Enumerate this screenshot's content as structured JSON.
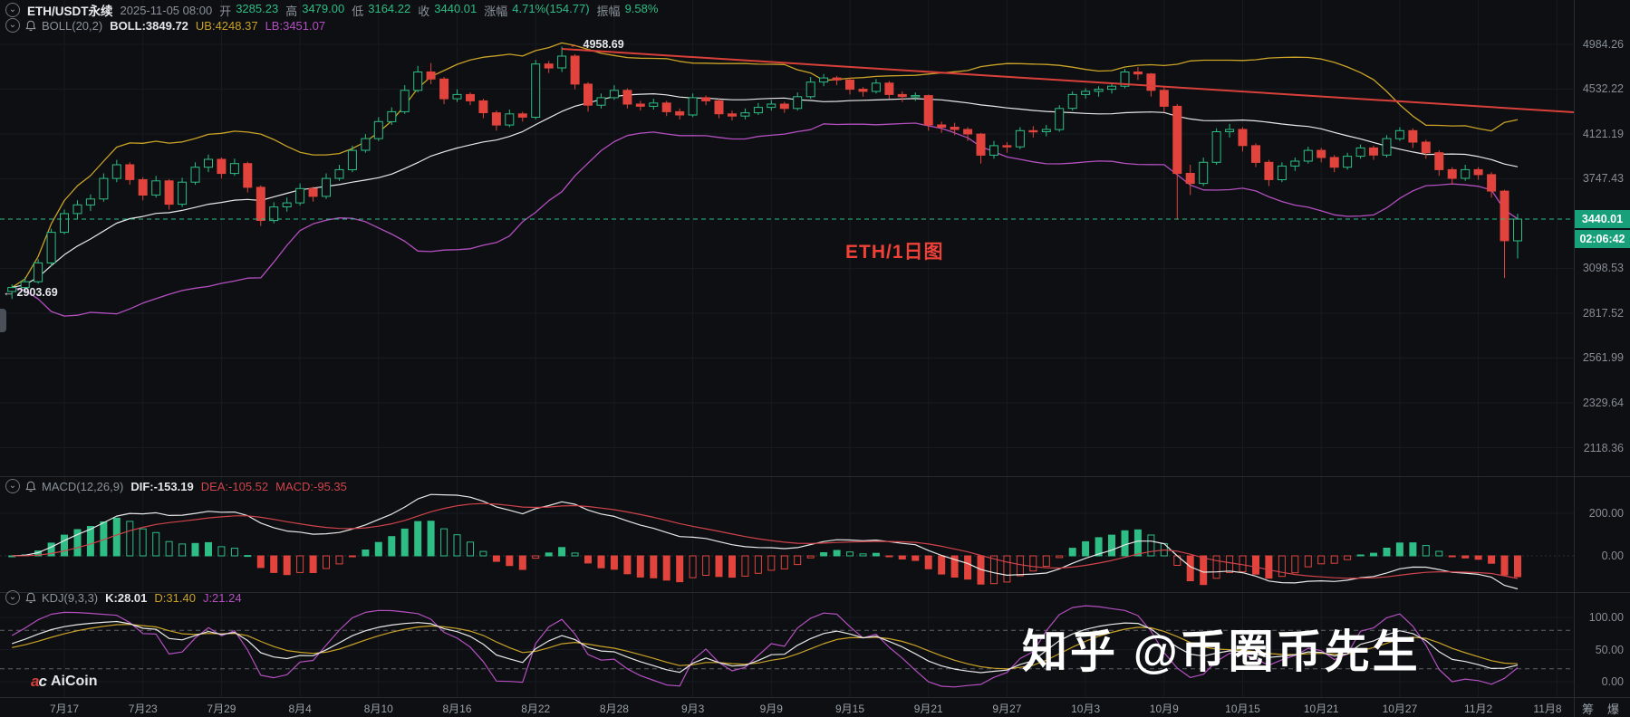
{
  "icons": {
    "collapse": "⌄",
    "arrow_left": "←"
  },
  "header": {
    "symbol": "ETH/USDT永续",
    "datetime": "2025-11-05 08:00",
    "fields": [
      {
        "l": "开",
        "v": "3285.23"
      },
      {
        "l": "高",
        "v": "3479.00"
      },
      {
        "l": "低",
        "v": "3164.22"
      },
      {
        "l": "收",
        "v": "3440.01"
      },
      {
        "l": "涨幅",
        "v": "4.71%(154.77)"
      },
      {
        "l": "振幅",
        "v": "9.58%"
      }
    ]
  },
  "boll_row": {
    "name": "BOLL(20,2)",
    "mid": "BOLL:3849.72",
    "ub": "UB:4248.37",
    "lb": "LB:3451.07"
  },
  "macd_row": {
    "name": "MACD(12,26,9)",
    "dif": "DIF:-153.19",
    "dea": "DEA:-105.52",
    "macd": "MACD:-95.35"
  },
  "kdj_row": {
    "name": "KDJ(9,3,3)",
    "k": "K:28.01",
    "d": "D:31.40",
    "j": "J:21.24"
  },
  "badge": {
    "price": "3440.01",
    "countdown": "02:06:42"
  },
  "annotations": {
    "peak": "4958.69",
    "low": "2903.69",
    "chart_label": "ETH/1日图",
    "watermark": "知乎 @币圈币先生"
  },
  "x_axis": {
    "tools": [
      "筹",
      "爆"
    ]
  },
  "logo": {
    "text": "AiCoin"
  },
  "colors": {
    "up": "#2ebd85",
    "down": "#e2443d",
    "boll_mid": "#e8e8e8",
    "boll_ub": "#c9a227",
    "boll_lb": "#b44fc0",
    "trend": "#d9403a",
    "price_line": "#2ebd85",
    "badge_bg": "#18a07b",
    "dif": "#e8e8e8",
    "dea": "#d0434b",
    "k_line": "#e8e8e8",
    "d_line": "#c9a227",
    "j_line": "#b44fc0",
    "grid": "#171b21",
    "axis_border": "#262b32",
    "guide": "#c6ccd3"
  },
  "chart_data": {
    "type": "candlestick",
    "symbol": "ETH/USDT永续",
    "interval": "1日",
    "log_scale": true,
    "last_price": 3440.01,
    "price_axis_ticks": [
      4984.26,
      4532.22,
      4121.19,
      3747.43,
      3098.53,
      2817.52,
      2561.99,
      2329.64,
      2118.36
    ],
    "macd_axis_ticks": [
      200,
      0
    ],
    "kdj_axis_ticks": [
      100,
      50,
      0
    ],
    "kdj_guides": [
      80,
      20
    ],
    "indicators": {
      "boll": {
        "period": 20,
        "mult": 2
      },
      "macd": {
        "fast": 12,
        "slow": 26,
        "signal": 9
      },
      "kdj": {
        "n": 9,
        "k": 3,
        "d": 3
      }
    },
    "x_tick_labels": [
      "7月17",
      "7月23",
      "7月29",
      "8月4",
      "8月10",
      "8月16",
      "8月22",
      "8月28",
      "9月3",
      "9月9",
      "9月15",
      "9月21",
      "9月27",
      "10月3",
      "10月9",
      "10月15",
      "10月21",
      "10月27",
      "11月2",
      "11月8"
    ],
    "x_tick_first_candle_index": 4,
    "x_tick_step": 6,
    "trendline": {
      "from_candle": 42,
      "from_price": 4890,
      "to_x_frac": 1.0,
      "to_price": 4400
    },
    "candles": [
      [
        2950,
        2995,
        2903.69,
        2975
      ],
      [
        2975,
        3040,
        2950,
        3012
      ],
      [
        3012,
        3160,
        3000,
        3135
      ],
      [
        3135,
        3370,
        3110,
        3345
      ],
      [
        3345,
        3510,
        3330,
        3480
      ],
      [
        3480,
        3580,
        3440,
        3545
      ],
      [
        3545,
        3625,
        3500,
        3590
      ],
      [
        3590,
        3790,
        3570,
        3750
      ],
      [
        3750,
        3900,
        3720,
        3860
      ],
      [
        3860,
        3880,
        3700,
        3740
      ],
      [
        3740,
        3760,
        3580,
        3620
      ],
      [
        3620,
        3770,
        3600,
        3730
      ],
      [
        3730,
        3745,
        3510,
        3550
      ],
      [
        3550,
        3755,
        3530,
        3720
      ],
      [
        3720,
        3880,
        3700,
        3840
      ],
      [
        3840,
        3945,
        3800,
        3905
      ],
      [
        3905,
        3920,
        3750,
        3790
      ],
      [
        3790,
        3910,
        3770,
        3870
      ],
      [
        3870,
        3885,
        3640,
        3680
      ],
      [
        3680,
        3695,
        3390,
        3430
      ],
      [
        3430,
        3565,
        3410,
        3530
      ],
      [
        3530,
        3600,
        3495,
        3560
      ],
      [
        3560,
        3710,
        3540,
        3670
      ],
      [
        3670,
        3685,
        3570,
        3610
      ],
      [
        3610,
        3790,
        3590,
        3750
      ],
      [
        3750,
        3860,
        3730,
        3820
      ],
      [
        3820,
        4020,
        3800,
        3980
      ],
      [
        3980,
        4120,
        3960,
        4080
      ],
      [
        4080,
        4270,
        4060,
        4230
      ],
      [
        4230,
        4360,
        4200,
        4320
      ],
      [
        4320,
        4570,
        4300,
        4520
      ],
      [
        4520,
        4760,
        4500,
        4700
      ],
      [
        4700,
        4790,
        4580,
        4630
      ],
      [
        4630,
        4650,
        4390,
        4440
      ],
      [
        4440,
        4530,
        4410,
        4480
      ],
      [
        4480,
        4500,
        4380,
        4420
      ],
      [
        4420,
        4440,
        4260,
        4310
      ],
      [
        4310,
        4330,
        4150,
        4200
      ],
      [
        4200,
        4340,
        4180,
        4300
      ],
      [
        4300,
        4320,
        4230,
        4270
      ],
      [
        4270,
        4820,
        4250,
        4780
      ],
      [
        4780,
        4810,
        4690,
        4740
      ],
      [
        4740,
        4958.69,
        4700,
        4860
      ],
      [
        4860,
        4880,
        4530,
        4580
      ],
      [
        4580,
        4600,
        4320,
        4380
      ],
      [
        4380,
        4490,
        4350,
        4450
      ],
      [
        4450,
        4570,
        4430,
        4520
      ],
      [
        4520,
        4540,
        4350,
        4390
      ],
      [
        4390,
        4420,
        4330,
        4370
      ],
      [
        4370,
        4440,
        4340,
        4400
      ],
      [
        4400,
        4420,
        4280,
        4320
      ],
      [
        4320,
        4350,
        4250,
        4290
      ],
      [
        4290,
        4490,
        4270,
        4450
      ],
      [
        4450,
        4470,
        4380,
        4420
      ],
      [
        4420,
        4440,
        4260,
        4300
      ],
      [
        4300,
        4330,
        4240,
        4280
      ],
      [
        4280,
        4350,
        4250,
        4310
      ],
      [
        4310,
        4400,
        4290,
        4360
      ],
      [
        4360,
        4430,
        4330,
        4390
      ],
      [
        4390,
        4410,
        4310,
        4350
      ],
      [
        4350,
        4500,
        4330,
        4460
      ],
      [
        4460,
        4650,
        4440,
        4600
      ],
      [
        4600,
        4680,
        4560,
        4640
      ],
      [
        4640,
        4660,
        4570,
        4620
      ],
      [
        4620,
        4640,
        4480,
        4530
      ],
      [
        4530,
        4550,
        4460,
        4510
      ],
      [
        4510,
        4630,
        4490,
        4590
      ],
      [
        4590,
        4610,
        4440,
        4480
      ],
      [
        4480,
        4510,
        4410,
        4460
      ],
      [
        4460,
        4500,
        4420,
        4470
      ],
      [
        4470,
        4480,
        4150,
        4200
      ],
      [
        4200,
        4230,
        4130,
        4180
      ],
      [
        4180,
        4220,
        4110,
        4160
      ],
      [
        4160,
        4180,
        4060,
        4120
      ],
      [
        4120,
        4130,
        3870,
        3940
      ],
      [
        3940,
        4060,
        3910,
        4020
      ],
      [
        4020,
        4050,
        3960,
        4010
      ],
      [
        4010,
        4180,
        3990,
        4150
      ],
      [
        4150,
        4190,
        4090,
        4140
      ],
      [
        4140,
        4200,
        4100,
        4160
      ],
      [
        4160,
        4380,
        4140,
        4350
      ],
      [
        4350,
        4510,
        4330,
        4480
      ],
      [
        4480,
        4540,
        4440,
        4510
      ],
      [
        4510,
        4560,
        4460,
        4530
      ],
      [
        4530,
        4590,
        4490,
        4560
      ],
      [
        4560,
        4730,
        4540,
        4700
      ],
      [
        4700,
        4750,
        4620,
        4680
      ],
      [
        4680,
        4690,
        4460,
        4520
      ],
      [
        4520,
        4550,
        4320,
        4370
      ],
      [
        4370,
        4390,
        3436,
        3790
      ],
      [
        3790,
        3860,
        3620,
        3710
      ],
      [
        3710,
        3920,
        3690,
        3880
      ],
      [
        3880,
        4170,
        3860,
        4140
      ],
      [
        4140,
        4210,
        4090,
        4160
      ],
      [
        4160,
        4180,
        3970,
        4020
      ],
      [
        4020,
        4040,
        3840,
        3880
      ],
      [
        3880,
        3900,
        3690,
        3740
      ],
      [
        3740,
        3880,
        3720,
        3850
      ],
      [
        3850,
        3920,
        3810,
        3890
      ],
      [
        3890,
        4010,
        3870,
        3980
      ],
      [
        3980,
        4000,
        3880,
        3920
      ],
      [
        3920,
        3940,
        3800,
        3840
      ],
      [
        3840,
        3960,
        3820,
        3930
      ],
      [
        3930,
        4030,
        3910,
        4000
      ],
      [
        4000,
        4020,
        3900,
        3940
      ],
      [
        3940,
        4110,
        3920,
        4080
      ],
      [
        4080,
        4180,
        4060,
        4150
      ],
      [
        4150,
        4170,
        4000,
        4050
      ],
      [
        4050,
        4070,
        3910,
        3960
      ],
      [
        3960,
        3980,
        3770,
        3820
      ],
      [
        3820,
        3840,
        3700,
        3750
      ],
      [
        3750,
        3860,
        3730,
        3820
      ],
      [
        3820,
        3840,
        3740,
        3780
      ],
      [
        3780,
        3800,
        3600,
        3650
      ],
      [
        3650,
        3660,
        3036,
        3285.23
      ],
      [
        3285.23,
        3479,
        3164.22,
        3440.01
      ]
    ]
  }
}
